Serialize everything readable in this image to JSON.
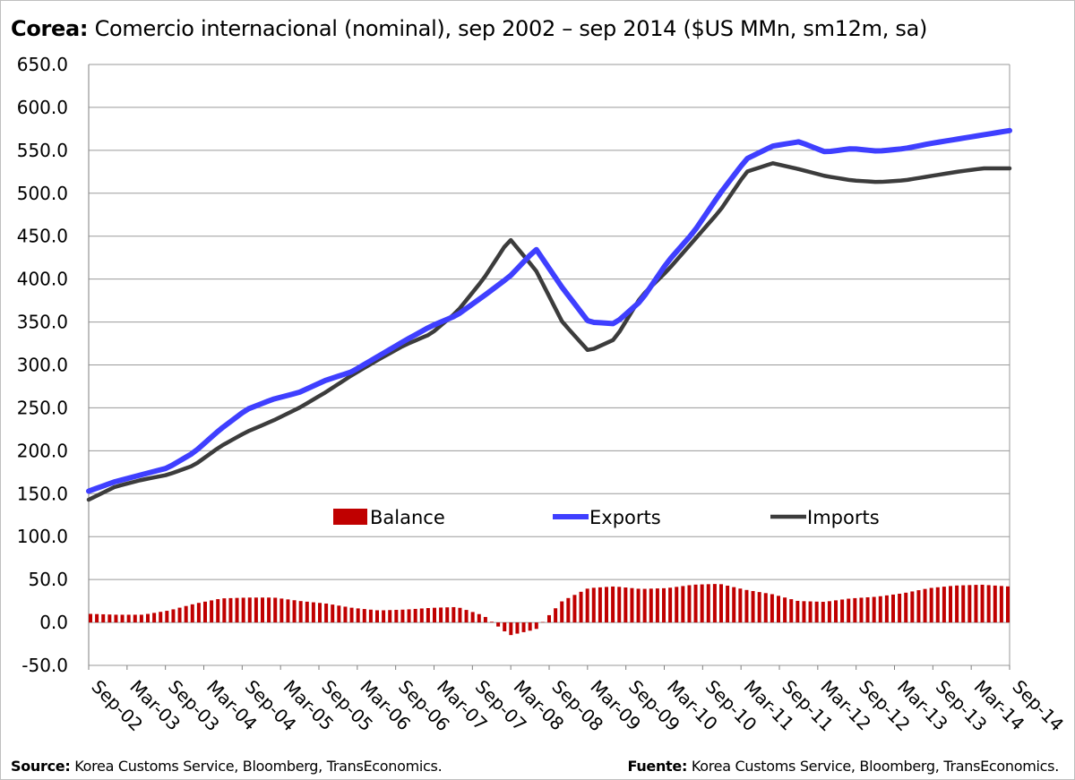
{
  "header": {
    "country": "Corea:",
    "subtitle": "Comercio internacional (nominal), sep 2002 – sep 2014 ($US MMn, sm12m, sa)"
  },
  "footer": {
    "left_label": "Source:",
    "left_text": "Korea Customs Service, Bloomberg, TransEconomics.",
    "right_label": "Fuente:",
    "right_text": "Korea Customs Service, Bloomberg, TransEconomics."
  },
  "chart_data": {
    "type": "line",
    "y_ticks": [
      "650.0",
      "600.0",
      "550.0",
      "500.0",
      "450.0",
      "400.0",
      "350.0",
      "300.0",
      "250.0",
      "200.0",
      "150.0",
      "100.0",
      "50.0",
      "0.0",
      "-50.0"
    ],
    "ylim": [
      -50,
      650
    ],
    "x_ticks": [
      "Sep-02",
      "Mar-03",
      "Sep-03",
      "Mar-04",
      "Sep-04",
      "Mar-05",
      "Sep-05",
      "Mar-06",
      "Sep-06",
      "Mar-07",
      "Sep-07",
      "Mar-08",
      "Sep-08",
      "Mar-09",
      "Sep-09",
      "Mar-10",
      "Sep-10",
      "Mar-11",
      "Sep-11",
      "Mar-12",
      "Sep-12",
      "Mar-13",
      "Sep-13",
      "Mar-14",
      "Sep-14"
    ],
    "grid": true,
    "legend_position": "center",
    "anchor_months": [
      0,
      6,
      12,
      18,
      24,
      30,
      36,
      42,
      48,
      54,
      60,
      66,
      72,
      78,
      84,
      90,
      96,
      102,
      108,
      114,
      120,
      126,
      132,
      138,
      144
    ],
    "series": [
      {
        "name": "Exports",
        "color": "#3f3fff",
        "style": "line",
        "values": [
          153,
          164,
          172,
          180,
          198,
          225,
          248,
          260,
          268,
          282,
          292,
          310,
          328,
          345,
          358,
          380,
          403,
          435,
          390,
          350,
          348,
          375,
          420,
          455,
          500,
          540,
          555,
          560,
          548,
          552,
          549,
          552,
          558,
          563,
          568,
          573
        ]
      },
      {
        "name": "Imports",
        "color": "#3c3c3c",
        "style": "line",
        "values": [
          143,
          158,
          166,
          172,
          183,
          205,
          222,
          235,
          250,
          268,
          288,
          306,
          323,
          336,
          362,
          400,
          447,
          410,
          350,
          316,
          330,
          380,
          410,
          445,
          480,
          525,
          535,
          528,
          520,
          515,
          513,
          515,
          520,
          525,
          529,
          529
        ]
      },
      {
        "name": "Balance",
        "color": "#c00000",
        "style": "bar",
        "values": [
          10,
          9,
          9,
          14,
          22,
          28,
          29,
          29,
          25,
          22,
          17,
          14,
          15,
          17,
          18,
          8,
          -15,
          -8,
          25,
          40,
          42,
          39,
          40,
          44,
          45,
          38,
          33,
          25,
          24,
          28,
          30,
          34,
          40,
          43,
          44,
          42
        ]
      }
    ],
    "legend": [
      "Balance",
      "Exports",
      "Imports"
    ]
  }
}
